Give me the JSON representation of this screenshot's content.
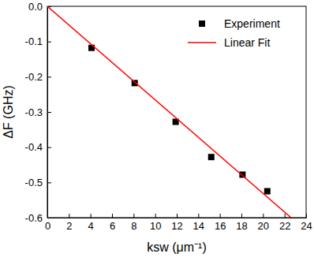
{
  "chart_data": {
    "type": "scatter",
    "x_label": "ksw (μm⁻¹)",
    "y_label": "ΔF (GHz)",
    "xlim": [
      0,
      24
    ],
    "xticks": [
      0,
      2,
      4,
      6,
      8,
      10,
      12,
      14,
      16,
      18,
      20,
      22,
      24
    ],
    "ylim": [
      -0.6,
      0
    ],
    "yticks": [
      {
        "value": 0,
        "label": "0.0"
      },
      -0.1,
      -0.2,
      -0.3,
      -0.4,
      -0.5,
      -0.6
    ],
    "legend": "top-right",
    "series": [
      {
        "name": "Experiment",
        "type": "scatter",
        "color": "#000000",
        "marker": "square",
        "x": [
          4.1,
          8.1,
          11.9,
          15.2,
          18.1,
          20.4
        ],
        "values": [
          -0.118,
          -0.218,
          -0.328,
          -0.428,
          -0.478,
          -0.525
        ]
      },
      {
        "name": "Linear Fit",
        "type": "line",
        "color": "#ff0000",
        "line_style": "solid",
        "x": [
          0,
          22.6
        ],
        "values": [
          0,
          -0.6
        ]
      }
    ]
  }
}
